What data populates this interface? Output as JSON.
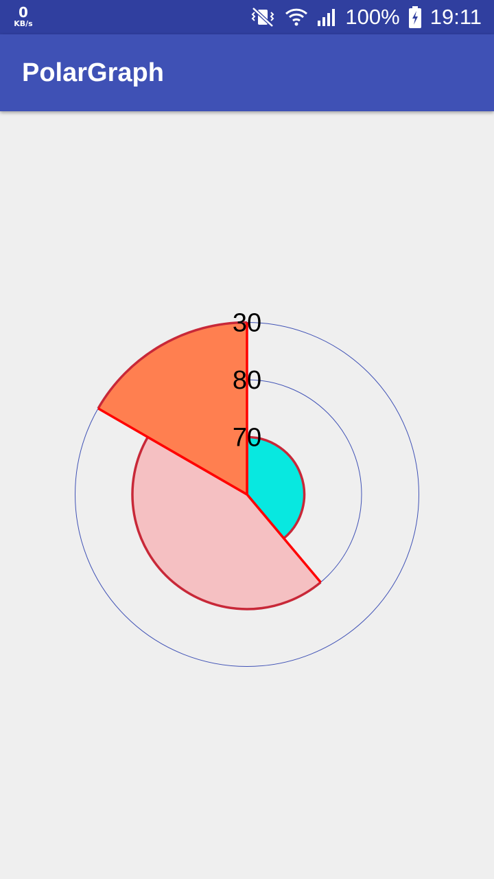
{
  "status_bar": {
    "net_speed_value": "0",
    "net_speed_unit": "KB/s",
    "battery_percent": "100%",
    "time": "19:11",
    "icons": [
      "vibrate-mute-icon",
      "wifi-icon",
      "signal-icon",
      "battery-charging-icon"
    ]
  },
  "app_bar": {
    "title": "PolarGraph"
  },
  "colors": {
    "status_bar": "#303f9f",
    "app_bar": "#3f51b5",
    "background": "#efefef",
    "grid": "#3f51b5",
    "slice_stroke": "#ff0000"
  },
  "chart_data": {
    "type": "polar-area",
    "rings": [
      1,
      2,
      3
    ],
    "ring_labels": [
      "70",
      "80",
      "30"
    ],
    "start_angle_deg": 0,
    "slices": [
      {
        "value": 1,
        "sweep_deg": 140,
        "color": "#08e8e0"
      },
      {
        "value": 2,
        "sweep_deg": 160,
        "color": "#f5c0c2"
      },
      {
        "value": 3,
        "sweep_deg": 60,
        "color": "#ff7f50"
      }
    ],
    "grid": true,
    "legend": "none"
  }
}
